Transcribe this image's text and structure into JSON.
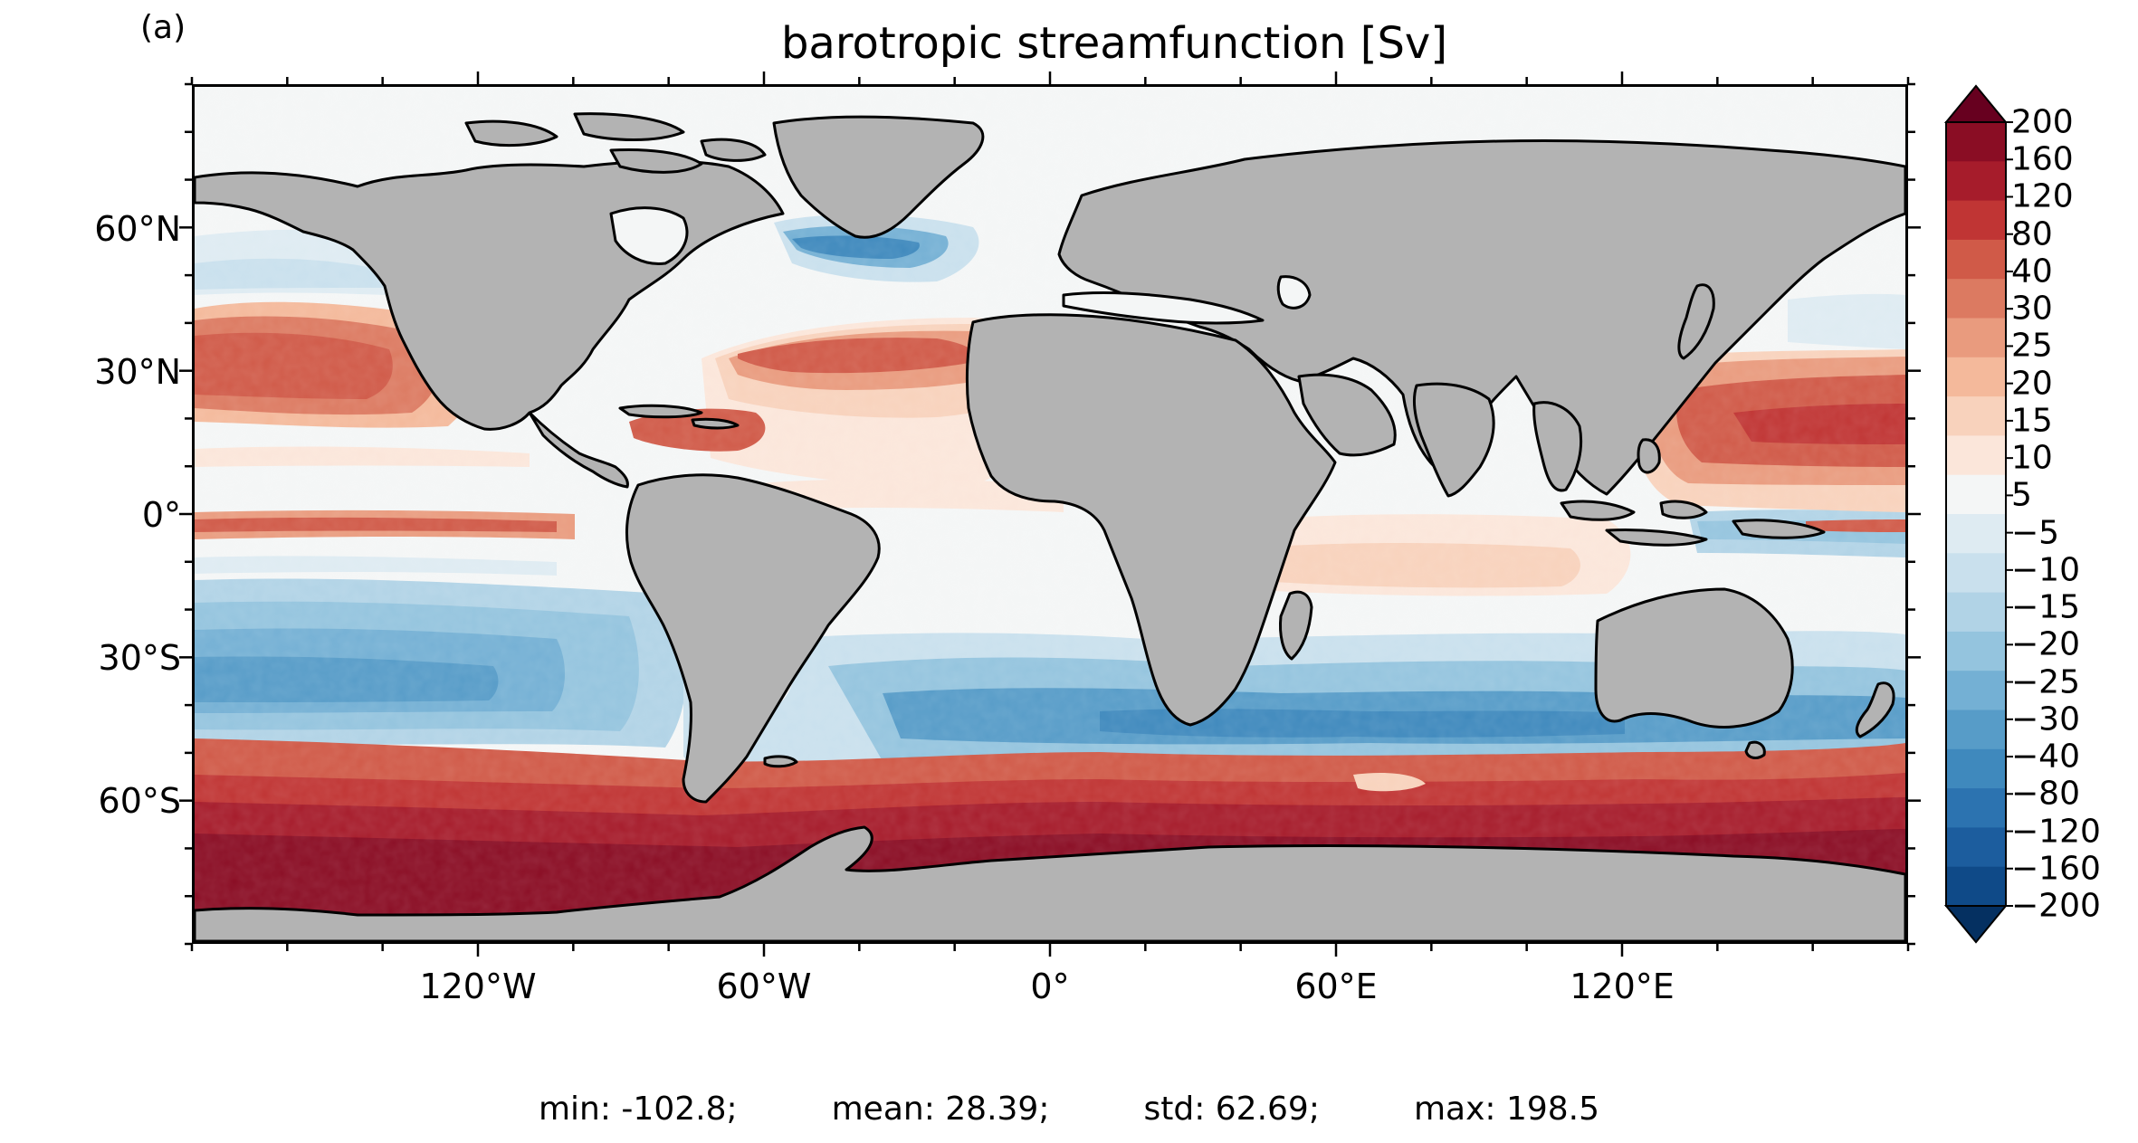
{
  "panel_label": "(a)",
  "title": "barotropic streamfunction [Sv]",
  "lon_ticks": [
    "120°W",
    "60°W",
    "0°",
    "60°E",
    "120°E"
  ],
  "lat_ticks": [
    "60°N",
    "30°N",
    "0°",
    "30°S",
    "60°S"
  ],
  "colorbar": {
    "labels": [
      "200",
      "160",
      "120",
      "80",
      "40",
      "30",
      "25",
      "20",
      "15",
      "10",
      "5",
      "−5",
      "−10",
      "−15",
      "−20",
      "−25",
      "−30",
      "−40",
      "−80",
      "−120",
      "−160",
      "−200"
    ],
    "colors": [
      "#67001f",
      "#8a0d24",
      "#a61c2b",
      "#c03534",
      "#d05a48",
      "#dc7a61",
      "#e99b7e",
      "#f4b99b",
      "#f8d2bc",
      "#fbe6da",
      "#f4f6f6",
      "#deebf2",
      "#c9e0ed",
      "#b1d3e6",
      "#94c4de",
      "#74b0d4",
      "#579cc8",
      "#3f89bd",
      "#2c73b0",
      "#1c5d9e",
      "#0f4a88",
      "#053061"
    ]
  },
  "colors": {
    "land": "#b3b3b3",
    "ocean_neutral": "#f4f6f6",
    "coast": "#000000"
  },
  "stats": {
    "min": "min: -102.8;",
    "mean": "mean: 28.39;",
    "std": "std: 62.69;",
    "max": "max: 198.5"
  }
}
